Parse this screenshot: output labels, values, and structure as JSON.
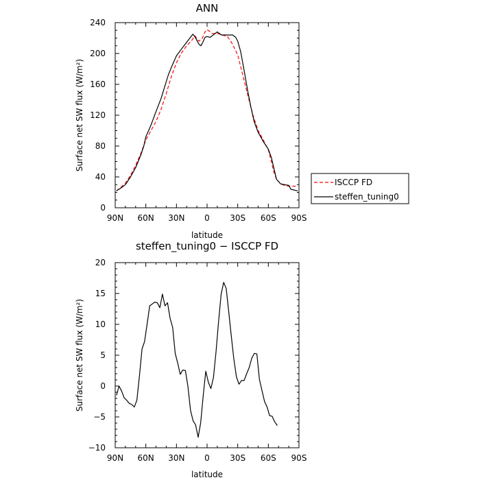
{
  "chart_data": [
    {
      "type": "line",
      "title": "ANN",
      "xlabel": "latitude",
      "ylabel": "Surface net SW flux (W/m²)",
      "xticks": [
        "90N",
        "60N",
        "30N",
        "0",
        "30S",
        "60S",
        "90S"
      ],
      "yticks": [
        "0",
        "40",
        "80",
        "120",
        "160",
        "200",
        "240"
      ],
      "xlim": [
        90,
        -90
      ],
      "ylim": [
        0,
        240
      ],
      "legend": "outside-right",
      "series": [
        {
          "name": "ISCCP FD",
          "color": "#ff0000",
          "style": "dashed",
          "points": [
            [
              88.75,
              22
            ],
            [
              85,
              26
            ],
            [
              80,
              32
            ],
            [
              75,
              42
            ],
            [
              70,
              55
            ],
            [
              65,
              70
            ],
            [
              60,
              88
            ],
            [
              55,
              100
            ],
            [
              50,
              112
            ],
            [
              45,
              128
            ],
            [
              40,
              148
            ],
            [
              35,
              170
            ],
            [
              30,
              188
            ],
            [
              25,
              201
            ],
            [
              20,
              210
            ],
            [
              15,
              217
            ],
            [
              12,
              223
            ],
            [
              8,
              216
            ],
            [
              5,
              219
            ],
            [
              2,
              228
            ],
            [
              0,
              231
            ],
            [
              -3,
              228
            ],
            [
              -5,
              226
            ],
            [
              -10,
              226
            ],
            [
              -15,
              224
            ],
            [
              -20,
              222
            ],
            [
              -25,
              212
            ],
            [
              -30,
              198
            ],
            [
              -35,
              172
            ],
            [
              -40,
              145
            ],
            [
              -45,
              120
            ],
            [
              -50,
              100
            ],
            [
              -55,
              88
            ],
            [
              -60,
              75
            ],
            [
              -63,
              60
            ],
            [
              -65,
              48
            ],
            [
              -68,
              37
            ],
            [
              -72,
              31
            ],
            [
              -76,
              29
            ],
            [
              -80,
              28
            ],
            [
              -88.75,
              28
            ]
          ]
        },
        {
          "name": "steffen_tuning0",
          "color": "#000000",
          "style": "solid",
          "points": [
            [
              88.75,
              22
            ],
            [
              85,
              25
            ],
            [
              80,
              30
            ],
            [
              75,
              40
            ],
            [
              70,
              52
            ],
            [
              65,
              68
            ],
            [
              62,
              80
            ],
            [
              60,
              92
            ],
            [
              55,
              107
            ],
            [
              50,
              125
            ],
            [
              45,
              142
            ],
            [
              42,
              155
            ],
            [
              38,
              172
            ],
            [
              35,
              182
            ],
            [
              30,
              197
            ],
            [
              25,
              206
            ],
            [
              22,
              211
            ],
            [
              18,
              218
            ],
            [
              14,
              225
            ],
            [
              12,
              222
            ],
            [
              8,
              212
            ],
            [
              6,
              210
            ],
            [
              4,
              215
            ],
            [
              2,
              221
            ],
            [
              0,
              222
            ],
            [
              -3,
              221
            ],
            [
              -6,
              224
            ],
            [
              -10,
              228
            ],
            [
              -14,
              224
            ],
            [
              -20,
              224
            ],
            [
              -25,
              224
            ],
            [
              -28,
              221
            ],
            [
              -30,
              216
            ],
            [
              -33,
              202
            ],
            [
              -36,
              180
            ],
            [
              -40,
              150
            ],
            [
              -43,
              130
            ],
            [
              -46,
              112
            ],
            [
              -50,
              98
            ],
            [
              -55,
              86
            ],
            [
              -60,
              76
            ],
            [
              -63,
              65
            ],
            [
              -66,
              48
            ],
            [
              -68,
              37
            ],
            [
              -72,
              31
            ],
            [
              -76,
              30
            ],
            [
              -80,
              29
            ],
            [
              -82,
              24
            ],
            [
              -88.75,
              22
            ]
          ]
        }
      ]
    },
    {
      "type": "line",
      "title": "steffen_tuning0 − ISCCP FD",
      "xlabel": "latitude",
      "ylabel": "Surface net SW flux (W/m²)",
      "xticks": [
        "90N",
        "60N",
        "30N",
        "0",
        "30S",
        "60S",
        "90S"
      ],
      "yticks": [
        "−10",
        "−5",
        "0",
        "5",
        "10",
        "15",
        "20"
      ],
      "xlim": [
        90,
        -90
      ],
      "ylim": [
        -10,
        20
      ],
      "series": [
        {
          "color": "#000000",
          "style": "solid",
          "points": [
            [
              88.75,
              -1.5
            ],
            [
              86.25,
              0
            ],
            [
              83.75,
              -0.8
            ],
            [
              81.25,
              -1.9
            ],
            [
              78.75,
              -2.3
            ],
            [
              76.25,
              -2.8
            ],
            [
              73.75,
              -3.0
            ],
            [
              71.25,
              -3.4
            ],
            [
              68.75,
              -2.3
            ],
            [
              66.25,
              1.7
            ],
            [
              63.75,
              6.0
            ],
            [
              61.25,
              7.2
            ],
            [
              58.75,
              10.0
            ],
            [
              56.25,
              13.0
            ],
            [
              53.75,
              13.3
            ],
            [
              51.25,
              13.6
            ],
            [
              48.75,
              13.5
            ],
            [
              46.25,
              12.7
            ],
            [
              43.75,
              14.9
            ],
            [
              41.25,
              13.0
            ],
            [
              38.75,
              13.5
            ],
            [
              36.25,
              11.0
            ],
            [
              33.75,
              9.5
            ],
            [
              31.25,
              5.3
            ],
            [
              28.75,
              3.7
            ],
            [
              26.25,
              1.9
            ],
            [
              23.75,
              2.6
            ],
            [
              21.25,
              2.5
            ],
            [
              18.75,
              -0.1
            ],
            [
              16.25,
              -3.9
            ],
            [
              13.75,
              -5.6
            ],
            [
              11.25,
              -6.3
            ],
            [
              8.75,
              -8.3
            ],
            [
              6.25,
              -5.9
            ],
            [
              3.75,
              -1.5
            ],
            [
              1.25,
              2.4
            ],
            [
              -1.25,
              0.6
            ],
            [
              -3.75,
              -0.4
            ],
            [
              -6.25,
              1.4
            ],
            [
              -8.75,
              5.5
            ],
            [
              -11.25,
              10.5
            ],
            [
              -13.75,
              14.9
            ],
            [
              -16.25,
              16.8
            ],
            [
              -18.75,
              15.8
            ],
            [
              -21.25,
              12.0
            ],
            [
              -23.75,
              8.0
            ],
            [
              -26.25,
              4.3
            ],
            [
              -28.75,
              1.5
            ],
            [
              -31.25,
              0.3
            ],
            [
              -33.75,
              0.9
            ],
            [
              -36.25,
              0.9
            ],
            [
              -38.75,
              2.0
            ],
            [
              -41.25,
              3.0
            ],
            [
              -43.75,
              4.5
            ],
            [
              -46.25,
              5.3
            ],
            [
              -48.75,
              5.2
            ],
            [
              -51.25,
              1.1
            ],
            [
              -53.75,
              -0.7
            ],
            [
              -56.25,
              -2.5
            ],
            [
              -58.75,
              -3.4
            ],
            [
              -61.25,
              -4.8
            ],
            [
              -63.75,
              -4.9
            ],
            [
              -66.25,
              -5.8
            ],
            [
              -68.75,
              -6.4
            ]
          ]
        }
      ]
    }
  ]
}
